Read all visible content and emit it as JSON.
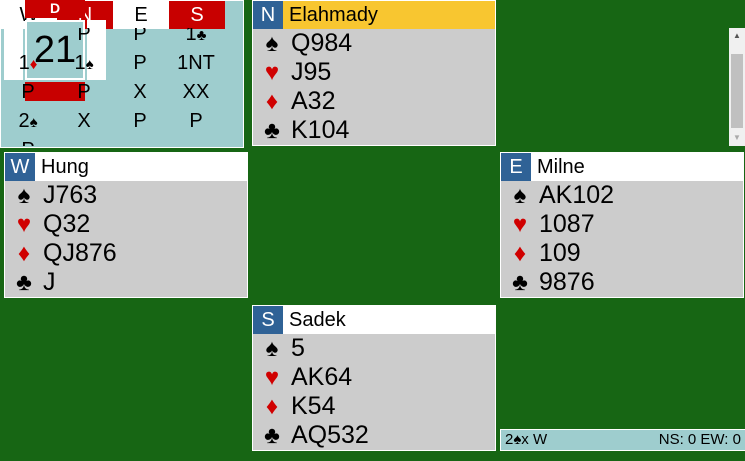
{
  "board": {
    "number": "21",
    "dealer_label": "D",
    "vulnerability": "N-S"
  },
  "colors": {
    "vul_red": "#c80000",
    "table_green": "#176614",
    "seat_blue": "#2f6296",
    "active_yellow": "#f8c630",
    "auction_bg": "#9ecdce"
  },
  "hands": {
    "north": {
      "seat": "N",
      "name": "Elahmady",
      "active": true,
      "spades": "Q984",
      "hearts": "J95",
      "diamonds": "A32",
      "clubs": "K104"
    },
    "west": {
      "seat": "W",
      "name": "Hung",
      "spades": "J763",
      "hearts": "Q32",
      "diamonds": "QJ876",
      "clubs": "J"
    },
    "east": {
      "seat": "E",
      "name": "Milne",
      "spades": "AK102",
      "hearts": "1087",
      "diamonds": "109",
      "clubs": "9876"
    },
    "south": {
      "seat": "S",
      "name": "Sadek",
      "spades": "5",
      "hearts": "AK64",
      "diamonds": "K54",
      "clubs": "AQ532"
    }
  },
  "suits": {
    "spade": "♠",
    "heart": "♥",
    "diamond": "♦",
    "club": "♣"
  },
  "auction": {
    "headers": [
      "W",
      "N",
      "E",
      "S"
    ],
    "rows": [
      [
        "",
        "P",
        "P",
        "1♣"
      ],
      [
        "1♦",
        "1♠",
        "P",
        "1NT"
      ],
      [
        "P",
        "P",
        "X",
        "XX"
      ],
      [
        "2♠",
        "X",
        "P",
        "P"
      ],
      [
        "P",
        "",
        "",
        ""
      ]
    ]
  },
  "status": {
    "contract": "2♠x W",
    "score": "NS: 0 EW: 0"
  }
}
